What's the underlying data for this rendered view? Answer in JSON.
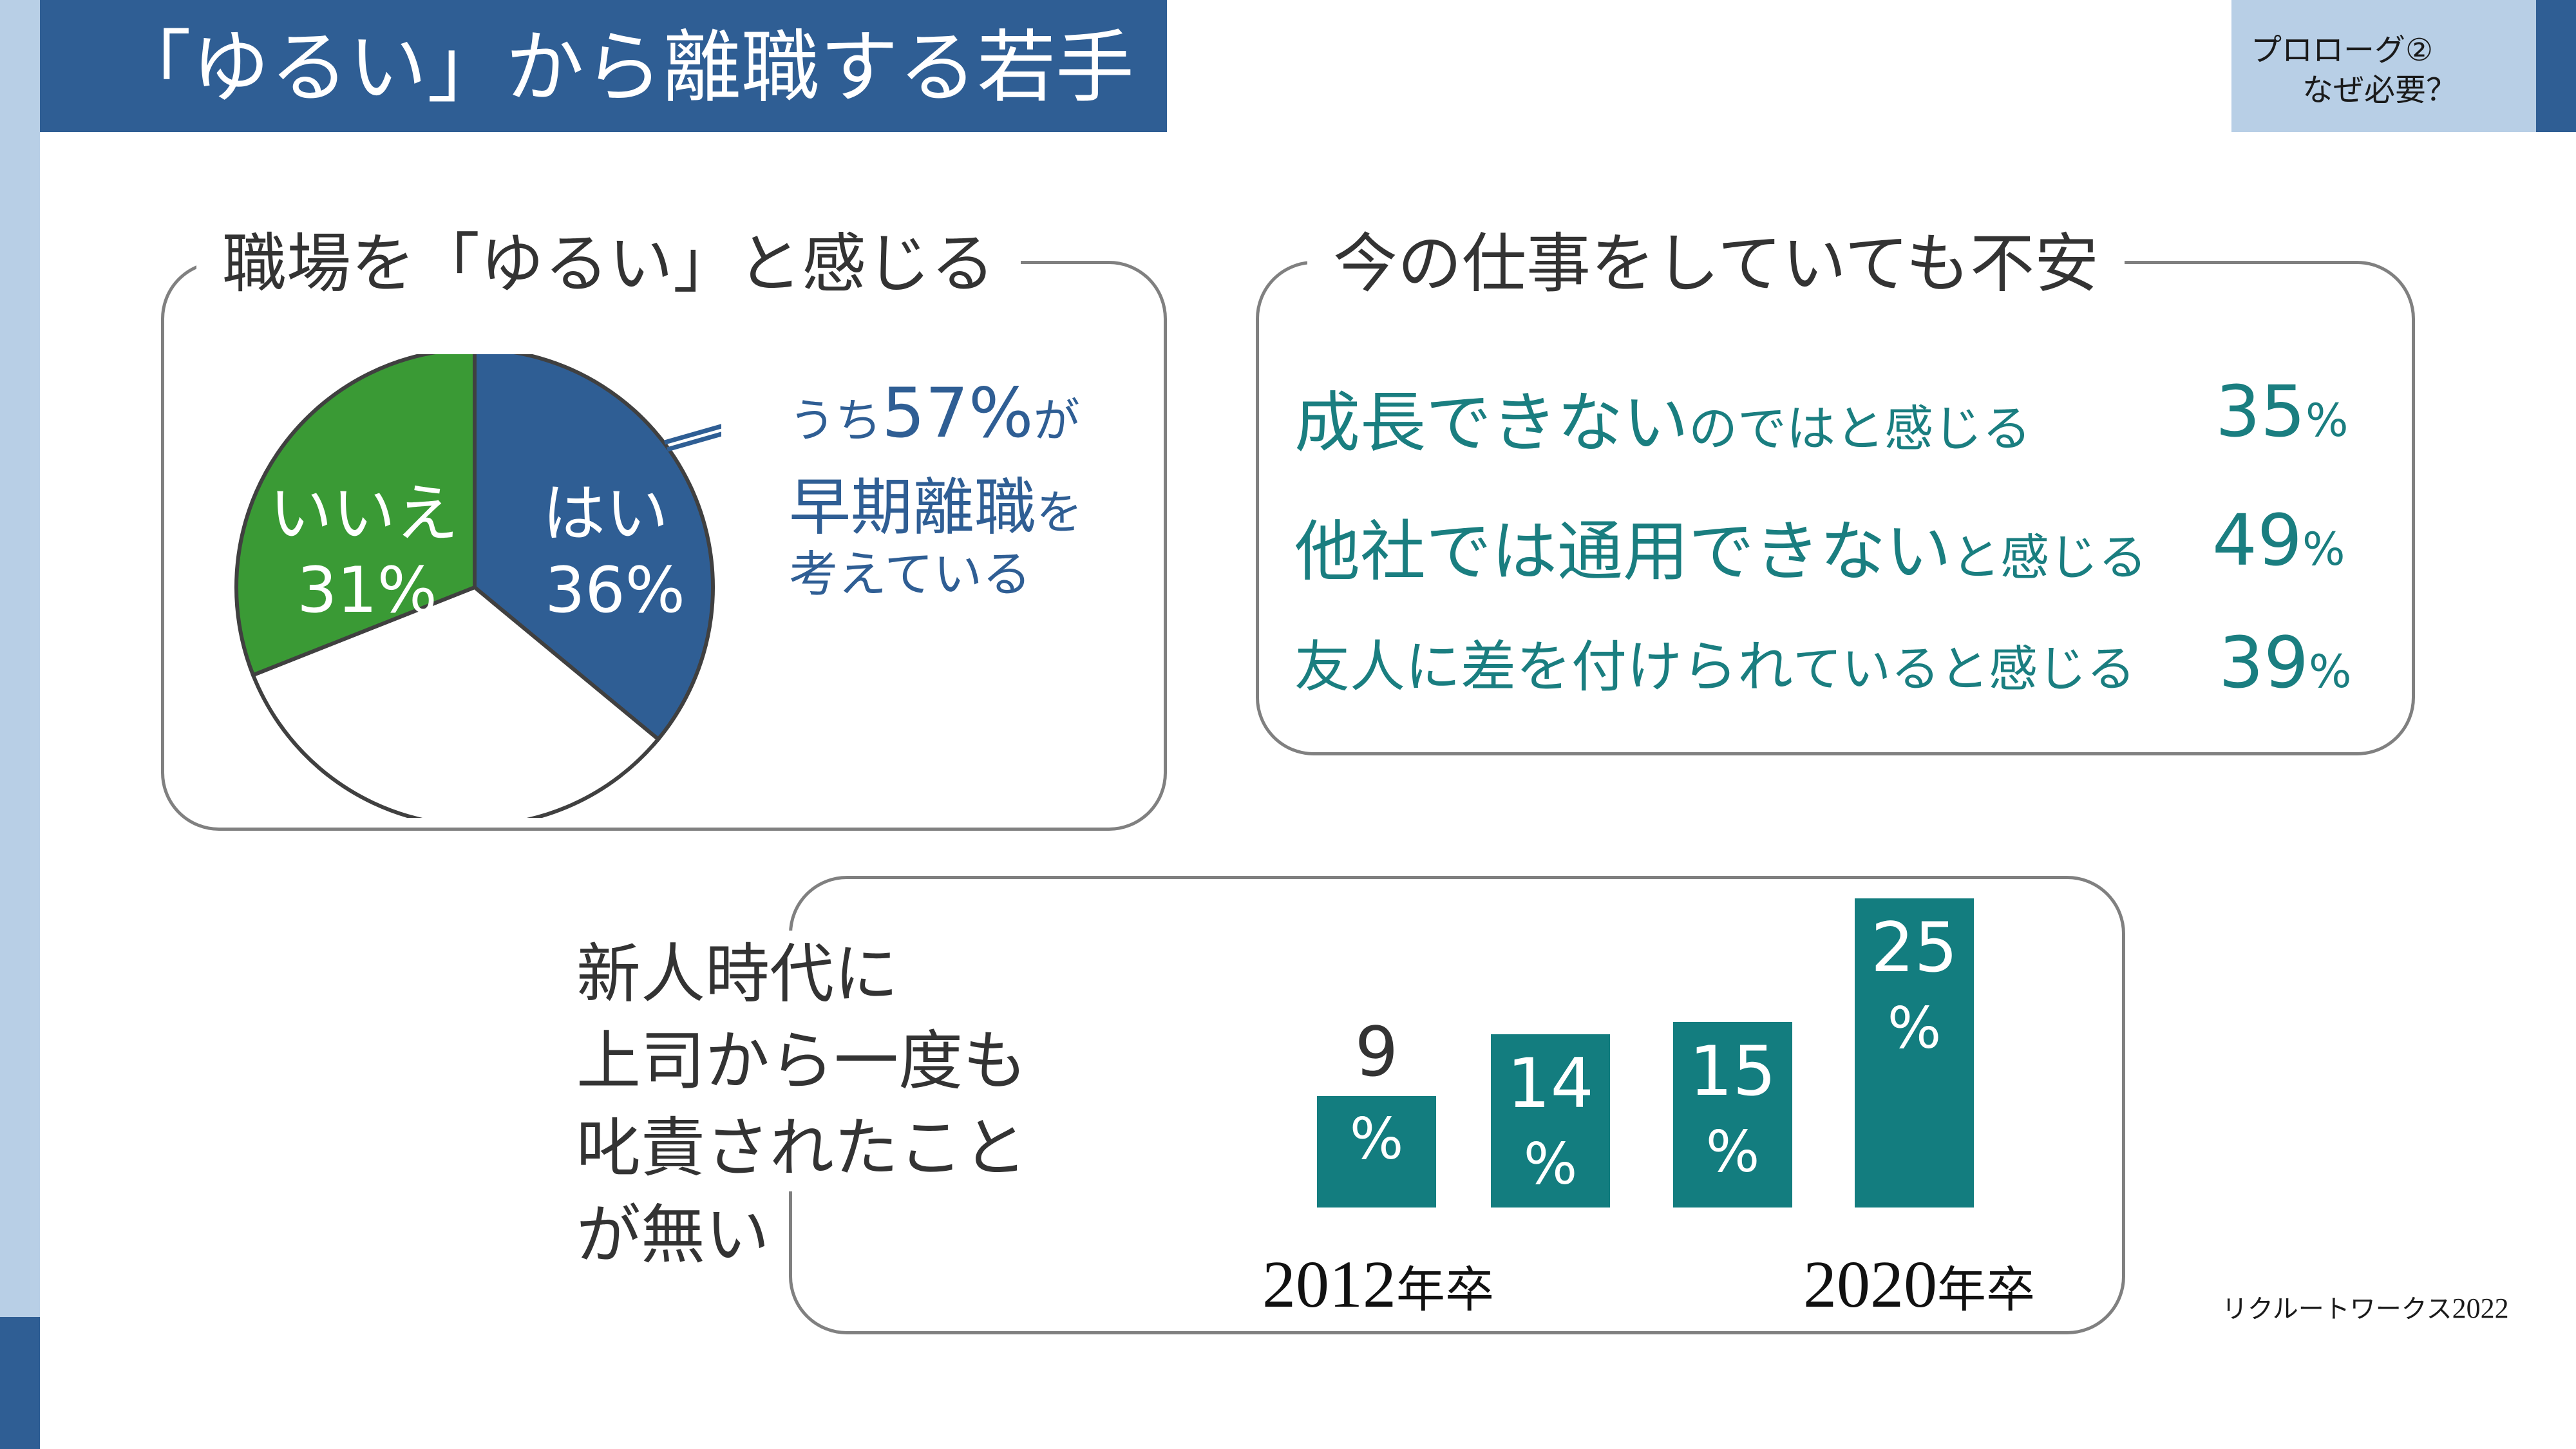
{
  "header": {
    "title": "「ゆるい」から離職する若手",
    "prologue_line1": "プロローグ②",
    "prologue_line2": "なぜ必要？"
  },
  "pie_panel": {
    "title": "職場を「ゆるい」と感じる",
    "callout_pre": "うち",
    "callout_value": "57%",
    "callout_post": "が",
    "callout_line2_main": "早期離職",
    "callout_line2_tail": "を",
    "callout_line3": "考えている"
  },
  "anxiety_panel": {
    "title": "今の仕事をしていても不安",
    "rows": [
      {
        "main": "成長できない",
        "tail": "のではと感じる",
        "pct_num": "35",
        "pct_sym": "%"
      },
      {
        "main": "他社では通用できない",
        "tail": "と感じる",
        "pct_num": "49",
        "pct_sym": "%"
      },
      {
        "main": "友人に差を付けられ",
        "tail": "ていると感じる",
        "pct_num": "39",
        "pct_sym": "%"
      }
    ]
  },
  "bar_panel": {
    "question_lines": [
      "新人時代に",
      "上司から一度も",
      "叱責されたこと",
      "が無い"
    ],
    "year_left_num": "2012",
    "year_left_suffix": "年卒",
    "year_right_num": "2020",
    "year_right_suffix": "年卒"
  },
  "source": {
    "text": "リクルートワークス",
    "year": "2022"
  },
  "colors": {
    "navy": "#2f5e94",
    "green": "#3a9a35",
    "teal": "#137d7f",
    "light_blue": "#b8cfe6"
  },
  "chart_data": [
    {
      "type": "pie",
      "title": "職場を「ゆるい」と感じる",
      "slices": [
        {
          "label": "はい",
          "value": 36,
          "display": "36%",
          "color": "#2f5e94"
        },
        {
          "label": "",
          "value": 33,
          "display": "",
          "color": "#ffffff"
        },
        {
          "label": "いいえ",
          "value": 31,
          "display": "31%",
          "color": "#3a9a35"
        }
      ]
    },
    {
      "type": "bar",
      "title": "新人時代に上司から一度も叱責されたことが無い",
      "categories": [
        "2012年卒",
        "",
        "",
        "2020年卒"
      ],
      "values": [
        9,
        14,
        15,
        25
      ],
      "labels": [
        "9",
        "14",
        "15",
        "25"
      ],
      "unit": "%",
      "color": "#137d7f"
    }
  ]
}
